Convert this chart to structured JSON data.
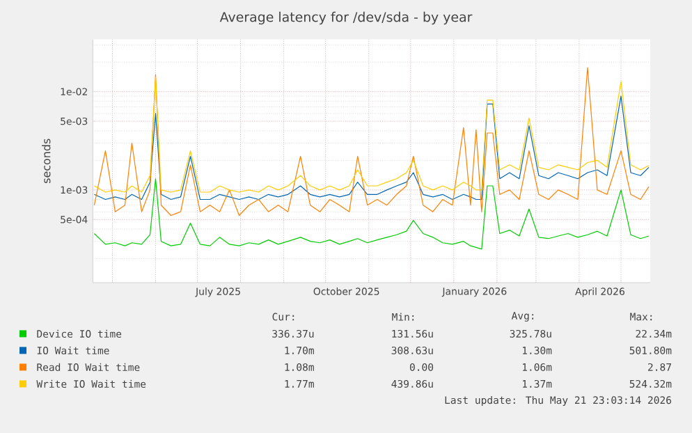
{
  "chart_data": {
    "type": "line",
    "title": "Average latency for /dev/sda - by year",
    "ylabel": "seconds",
    "x": [
      "2025-04-18",
      "2025-04-26",
      "2025-05-03",
      "2025-05-10",
      "2025-05-15",
      "2025-05-22",
      "2025-05-28",
      "2025-06-01",
      "2025-06-05",
      "2025-06-12",
      "2025-06-19",
      "2025-06-26",
      "2025-07-03",
      "2025-07-10",
      "2025-07-17",
      "2025-07-24",
      "2025-07-31",
      "2025-08-07",
      "2025-08-14",
      "2025-08-21",
      "2025-08-28",
      "2025-09-04",
      "2025-09-13",
      "2025-09-20",
      "2025-09-27",
      "2025-10-04",
      "2025-10-11",
      "2025-10-18",
      "2025-10-24",
      "2025-10-31",
      "2025-11-07",
      "2025-11-14",
      "2025-11-21",
      "2025-11-28",
      "2025-12-03",
      "2025-12-10",
      "2025-12-17",
      "2025-12-24",
      "2025-12-31",
      "2026-01-08",
      "2026-01-13",
      "2026-01-17",
      "2026-01-21",
      "2026-01-25",
      "2026-01-29",
      "2026-02-03",
      "2026-02-10",
      "2026-02-17",
      "2026-02-24",
      "2026-03-03",
      "2026-03-10",
      "2026-03-17",
      "2026-03-24",
      "2026-03-31",
      "2026-04-07",
      "2026-04-14",
      "2026-04-21",
      "2026-05-01",
      "2026-05-08",
      "2026-05-15",
      "2026-05-21"
    ],
    "series": [
      {
        "name": "Device IO time",
        "color": "#00cc00",
        "values": [
          0.00036,
          0.00028,
          0.00029,
          0.00027,
          0.00029,
          0.00028,
          0.00035,
          0.0013,
          0.0003,
          0.00027,
          0.00028,
          0.00046,
          0.00028,
          0.00027,
          0.00033,
          0.00028,
          0.00027,
          0.00029,
          0.00028,
          0.00031,
          0.00028,
          0.0003,
          0.00033,
          0.0003,
          0.00029,
          0.00031,
          0.00028,
          0.0003,
          0.00032,
          0.00029,
          0.00031,
          0.00033,
          0.00035,
          0.00038,
          0.00049,
          0.00036,
          0.00033,
          0.00029,
          0.00028,
          0.0003,
          0.00027,
          0.00026,
          0.00025,
          0.0011,
          0.0011,
          0.00036,
          0.00039,
          0.00034,
          0.00064,
          0.00033,
          0.00032,
          0.00034,
          0.00036,
          0.00033,
          0.00035,
          0.00038,
          0.00034,
          0.001,
          0.00035,
          0.00032,
          0.00034
        ]
      },
      {
        "name": "IO Wait time",
        "color": "#0066b3",
        "values": [
          0.0009,
          0.0008,
          0.00085,
          0.0008,
          0.0009,
          0.0008,
          0.0012,
          0.006,
          0.0009,
          0.0008,
          0.00085,
          0.0022,
          0.0008,
          0.0008,
          0.0009,
          0.00085,
          0.0008,
          0.00085,
          0.0008,
          0.0009,
          0.00085,
          0.0009,
          0.0011,
          0.0009,
          0.00085,
          0.0009,
          0.00085,
          0.0009,
          0.0012,
          0.0009,
          0.0009,
          0.001,
          0.0011,
          0.0012,
          0.0015,
          0.0009,
          0.00085,
          0.0009,
          0.0008,
          0.0009,
          0.00085,
          0.0008,
          0.0008,
          0.0075,
          0.0075,
          0.0013,
          0.0015,
          0.0013,
          0.0045,
          0.0014,
          0.0013,
          0.0015,
          0.0014,
          0.0013,
          0.0015,
          0.0016,
          0.0014,
          0.009,
          0.0015,
          0.0014,
          0.0017
        ]
      },
      {
        "name": "Read IO Wait time",
        "color": "#ff8000",
        "values": [
          0.0007,
          0.0025,
          0.0006,
          0.0007,
          0.003,
          0.0006,
          0.001,
          0.0149,
          0.0007,
          0.00055,
          0.0006,
          0.0018,
          0.0006,
          0.0007,
          0.0006,
          0.001,
          0.00055,
          0.0007,
          0.0008,
          0.0006,
          0.0007,
          0.0006,
          0.0022,
          0.0007,
          0.0006,
          0.0008,
          0.0007,
          0.0006,
          0.0022,
          0.0007,
          0.0008,
          0.0007,
          0.0009,
          0.0011,
          0.0022,
          0.0007,
          0.0006,
          0.0008,
          0.0007,
          0.0043,
          0.0007,
          0.0041,
          0.0006,
          0.0038,
          0.0038,
          0.0009,
          0.001,
          0.0008,
          0.0025,
          0.0009,
          0.0008,
          0.001,
          0.0009,
          0.0008,
          0.0176,
          0.001,
          0.0009,
          0.0025,
          0.0009,
          0.0008,
          0.00108
        ]
      },
      {
        "name": "Write IO Wait time",
        "color": "#ffcc00",
        "values": [
          0.0011,
          0.00095,
          0.001,
          0.00095,
          0.0011,
          0.00095,
          0.0014,
          0.014,
          0.001,
          0.00095,
          0.001,
          0.0025,
          0.00095,
          0.00095,
          0.0011,
          0.001,
          0.00095,
          0.001,
          0.00095,
          0.0011,
          0.001,
          0.0011,
          0.0014,
          0.0011,
          0.001,
          0.0011,
          0.001,
          0.0011,
          0.0016,
          0.0011,
          0.0011,
          0.0012,
          0.0013,
          0.0015,
          0.002,
          0.0011,
          0.001,
          0.0011,
          0.001,
          0.0012,
          0.0011,
          0.001,
          0.001,
          0.0082,
          0.0082,
          0.0016,
          0.0018,
          0.0016,
          0.0054,
          0.0017,
          0.0016,
          0.0018,
          0.0017,
          0.0016,
          0.0019,
          0.002,
          0.0017,
          0.0127,
          0.0018,
          0.0016,
          0.00177
        ]
      }
    ],
    "xlim": [
      "2025-04-17",
      "2026-05-22"
    ],
    "xticks": [
      {
        "value": "2025-05-01",
        "label": null
      },
      {
        "value": "2025-06-01",
        "label": null
      },
      {
        "value": "2025-07-01",
        "label": null
      },
      {
        "value": "2025-08-01",
        "label": null
      },
      {
        "value": "2025-09-01",
        "label": null
      },
      {
        "value": "2025-10-01",
        "label": null
      },
      {
        "value": "2025-11-01",
        "label": null
      },
      {
        "value": "2025-12-01",
        "label": null
      },
      {
        "value": "2026-01-01",
        "label": null
      },
      {
        "value": "2026-02-01",
        "label": null
      },
      {
        "value": "2026-03-01",
        "label": null
      },
      {
        "value": "2026-04-01",
        "label": null
      },
      {
        "value": "2026-05-01",
        "label": null
      },
      {
        "value": "2025-07-16",
        "label": "July 2025"
      },
      {
        "value": "2025-10-16",
        "label": "October 2025"
      },
      {
        "value": "2026-01-16",
        "label": "January 2026"
      },
      {
        "value": "2026-04-16",
        "label": "April 2026"
      }
    ],
    "ylim": [
      0.000114,
      0.034
    ],
    "yticks": [
      {
        "value": 0.0005,
        "label": "5e-04"
      },
      {
        "value": 0.001,
        "label": "1e-03"
      },
      {
        "value": 0.005,
        "label": "5e-03"
      },
      {
        "value": 0.01,
        "label": "1e-02"
      }
    ],
    "log": "y",
    "grid": true,
    "legend": "bottom",
    "annotations": [
      "Cur:",
      "Min:",
      "Avg:",
      "Max:",
      "336.37u",
      "131.56u",
      "325.78u",
      "22.34m",
      "1.70m",
      "308.63u",
      "1.30m",
      "501.80m",
      "1.08m",
      "0.00",
      "1.06m",
      "2.87",
      "1.77m",
      "439.86u",
      "1.37m",
      "524.32m",
      "Last update: Thu May 21 23:03:14 2026"
    ]
  }
}
